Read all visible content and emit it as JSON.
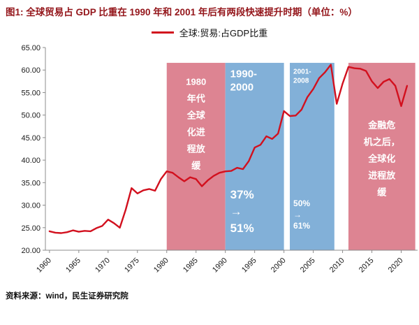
{
  "title": {
    "text": "图1: 全球贸易占 GDP 比重在 1990 年和 2001 年后有两段快速提升时期（单位：%）"
  },
  "legend": {
    "label": "全球:贸易:占GDP比重"
  },
  "footer": {
    "source": "资料来源：wind，民生证券研究院"
  },
  "colors": {
    "title_red": "#94161b",
    "line_red": "#d2101e",
    "band_red": "#dd8492",
    "band_blue": "#82b0d8",
    "axis_gray": "#8c8c8c",
    "tick_text": "#1a1a1a"
  },
  "chart_data": {
    "type": "line",
    "title": "全球:贸易:占GDP比重",
    "xlabel": "",
    "ylabel": "",
    "legend_position": "top-center",
    "grid": false,
    "ylim": [
      20,
      65
    ],
    "ytick_step": 5,
    "xlim": [
      1959.3,
      2022.8
    ],
    "xticks": [
      1960,
      1965,
      1970,
      1975,
      1980,
      1985,
      1990,
      1995,
      2000,
      2005,
      2010,
      2015,
      2020
    ],
    "band_top_value": 61.6,
    "series": [
      {
        "name": "全球:贸易:占GDP比重",
        "color": "#d2101e",
        "x": [
          1960,
          1961,
          1962,
          1963,
          1964,
          1965,
          1966,
          1967,
          1968,
          1969,
          1970,
          1971,
          1972,
          1973,
          1974,
          1975,
          1976,
          1977,
          1978,
          1979,
          1980,
          1981,
          1982,
          1983,
          1984,
          1985,
          1986,
          1987,
          1988,
          1989,
          1990,
          1991,
          1992,
          1993,
          1994,
          1995,
          1996,
          1997,
          1998,
          1999,
          2000,
          2001,
          2002,
          2003,
          2004,
          2005,
          2006,
          2007,
          2008,
          2009,
          2010,
          2011,
          2012,
          2013,
          2014,
          2015,
          2016,
          2017,
          2018,
          2019,
          2020,
          2021
        ],
        "y": [
          24.2,
          23.9,
          23.8,
          24.0,
          24.4,
          24.1,
          24.3,
          24.2,
          24.9,
          25.4,
          26.8,
          26.0,
          25.0,
          29.0,
          33.8,
          32.6,
          33.3,
          33.6,
          33.2,
          35.8,
          37.5,
          37.2,
          36.2,
          35.3,
          36.2,
          35.8,
          34.2,
          35.5,
          36.5,
          37.2,
          37.5,
          37.6,
          38.3,
          38.0,
          39.8,
          42.8,
          43.4,
          45.3,
          44.7,
          45.9,
          50.9,
          49.8,
          49.9,
          51.2,
          54.0,
          55.8,
          58.2,
          59.5,
          61.2,
          52.5,
          57.0,
          60.7,
          60.4,
          60.3,
          59.8,
          57.5,
          56.0,
          57.4,
          58.0,
          56.5,
          52.0,
          56.5
        ]
      }
    ],
    "bands": [
      {
        "from": 1980,
        "to": 1990,
        "color": "#dd8492",
        "texts": [
          {
            "lines": [
              "1980",
              "年代",
              "全球",
              "化进",
              "程放",
              "缓"
            ],
            "frac": 0.07,
            "size": 13,
            "lh": 24,
            "align": "center",
            "pad": 0
          }
        ]
      },
      {
        "from": 1990,
        "to": 2000,
        "color": "#82b0d8",
        "texts": [
          {
            "lines": [
              "1990-",
              "2000"
            ],
            "frac": 0.02,
            "size": 15,
            "lh": 19,
            "align": "left",
            "pad": 7
          },
          {
            "lines": [
              "37%",
              "→",
              "51%"
            ],
            "frac": 0.66,
            "size": 17,
            "lh": 24,
            "align": "left",
            "pad": 7
          }
        ]
      },
      {
        "from": 2001,
        "to": 2008.6,
        "color": "#82b0d8",
        "texts": [
          {
            "lines": [
              "2001-",
              "2008"
            ],
            "frac": 0.02,
            "size": 10,
            "lh": 13,
            "align": "left",
            "pad": 5
          },
          {
            "lines": [
              "50%",
              "→",
              "61%"
            ],
            "frac": 0.72,
            "size": 12,
            "lh": 16,
            "align": "left",
            "pad": 5
          }
        ]
      },
      {
        "from": 2011,
        "to": 2022.4,
        "color": "#dd8492",
        "texts": [
          {
            "lines": [
              "金融危",
              "机之后，",
              "全球化",
              "进程放",
              "缓"
            ],
            "frac": 0.3,
            "size": 13,
            "lh": 24,
            "align": "center",
            "pad": 0
          }
        ]
      }
    ]
  }
}
